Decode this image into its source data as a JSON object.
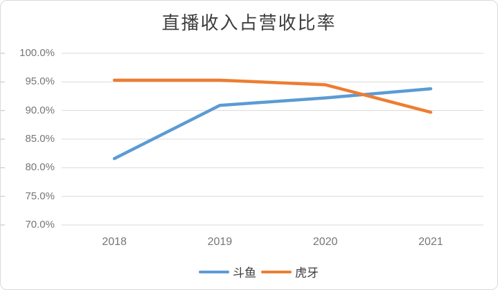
{
  "chart_data": {
    "type": "line",
    "title": "直播收入占营收比率",
    "categories": [
      "2018",
      "2019",
      "2020",
      "2021"
    ],
    "series": [
      {
        "name": "斗鱼",
        "color": "#5B9BD5",
        "values": [
          81.6,
          90.9,
          92.2,
          93.8
        ]
      },
      {
        "name": "虎牙",
        "color": "#ED7D31",
        "values": [
          95.3,
          95.3,
          94.5,
          89.7
        ]
      }
    ],
    "y_ticks": [
      {
        "label": "100.0%",
        "value": 100
      },
      {
        "label": "95.0%",
        "value": 95
      },
      {
        "label": "90.0%",
        "value": 90
      },
      {
        "label": "85.0%",
        "value": 85
      },
      {
        "label": "80.0%",
        "value": 80
      },
      {
        "label": "75.0%",
        "value": 75
      },
      {
        "label": "70.0%",
        "value": 70
      }
    ],
    "ylim": [
      70,
      100
    ],
    "xlabel": "",
    "ylabel": "",
    "grid": true,
    "legend_position": "bottom",
    "colors": {
      "gridline": "#d9d9d9",
      "axis_tick": "#bfbfbf",
      "axis_text": "#757575",
      "title_text": "#3d3d3d",
      "frame_border": "#d9d9d9",
      "background": "#ffffff"
    }
  }
}
